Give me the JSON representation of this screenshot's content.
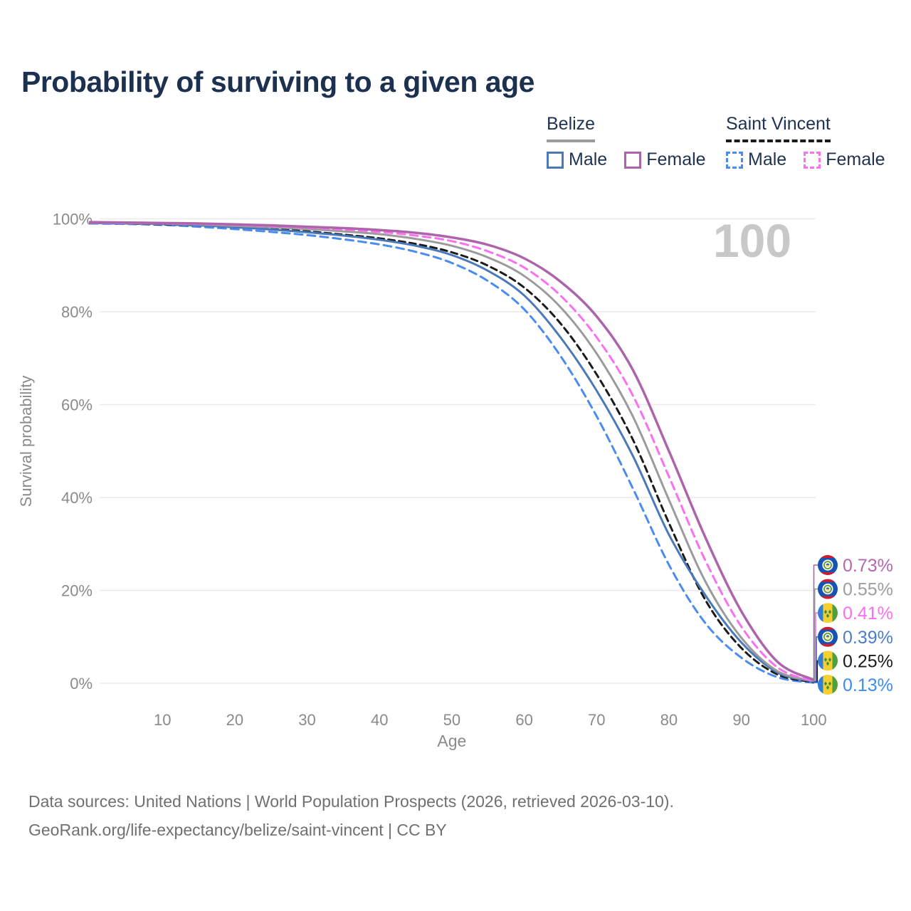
{
  "title": "Probability of surviving to a given age",
  "watermark": "100",
  "legend": {
    "belize": {
      "title": "Belize",
      "male_label": "Male",
      "female_label": "Female"
    },
    "saint_vincent": {
      "title": "Saint Vincent",
      "male_label": "Male",
      "female_label": "Female"
    }
  },
  "footer": {
    "line1": "Data sources: United Nations | World Population Prospects (2026, retrieved 2026-03-10).",
    "line2": "GeoRank.org/life-expectancy/belize/saint-vincent | CC BY"
  },
  "chart_data": {
    "type": "line",
    "title": "Probability of surviving to a given age",
    "xlabel": "Age",
    "ylabel": "Survival probability",
    "xlim": [
      0,
      100
    ],
    "ylim": [
      0,
      100
    ],
    "x_ticks": [
      10,
      20,
      30,
      40,
      50,
      60,
      70,
      80,
      90,
      100
    ],
    "y_ticks": [
      0,
      20,
      40,
      60,
      80,
      100
    ],
    "y_tick_suffix": "%",
    "grid": "horizontal-only",
    "legend_position": "top-right",
    "colors": {
      "grid": "#e9e9e9",
      "axis_text": "#8a8a8a",
      "watermark": "#c8c8c8",
      "title_text": "#1c3150",
      "footer_text": "#707070"
    },
    "ages": [
      0,
      5,
      10,
      15,
      20,
      25,
      30,
      35,
      40,
      45,
      50,
      55,
      60,
      65,
      70,
      75,
      80,
      85,
      90,
      95,
      100
    ],
    "series": [
      {
        "id": "sv-male",
        "name": "Saint Vincent Male",
        "country": "Saint Vincent",
        "sex": "Male",
        "style": "dashed",
        "dash": "11 7",
        "width": 3,
        "color": "#4a8cf0",
        "label_color": "#3e8bf2",
        "flag": "saint_vincent",
        "end_label": "0.13%",
        "label_row": 6,
        "values": [
          99.0,
          98.9,
          98.7,
          98.3,
          97.8,
          97.2,
          96.5,
          95.6,
          94.5,
          92.9,
          90.5,
          86.6,
          80.5,
          70.5,
          57.5,
          42.0,
          25.5,
          13.0,
          5.5,
          1.3,
          0.13
        ]
      },
      {
        "id": "sv-total",
        "name": "Saint Vincent (both sexes)",
        "country": "Saint Vincent",
        "sex": "Both",
        "style": "dashed",
        "dash": "9 6",
        "width": 3,
        "color": "#1b1b1b",
        "label_color": "#1b1b1b",
        "flag": "saint_vincent",
        "end_label": "0.25%",
        "label_row": 5,
        "values": [
          99.1,
          99.0,
          98.8,
          98.6,
          98.2,
          97.8,
          97.3,
          96.6,
          95.8,
          94.6,
          92.8,
          89.9,
          85.2,
          77.5,
          66.5,
          52.5,
          34.5,
          18.0,
          7.6,
          1.9,
          0.25
        ]
      },
      {
        "id": "belize-male",
        "name": "Belize Male",
        "country": "Belize",
        "sex": "Male",
        "style": "solid",
        "dash": "",
        "width": 3,
        "color": "#4a79ba",
        "label_color": "#4c7ec8",
        "flag": "belize",
        "end_label": "0.39%",
        "label_row": 4,
        "values": [
          99.1,
          99.0,
          98.9,
          98.6,
          98.2,
          97.7,
          97.1,
          96.4,
          95.5,
          94.2,
          92.2,
          88.8,
          83.5,
          74.5,
          63.0,
          49.0,
          32.0,
          19.0,
          8.8,
          2.3,
          0.39
        ]
      },
      {
        "id": "belize-total",
        "name": "Belize (both sexes)",
        "country": "Belize",
        "sex": "Both",
        "style": "solid",
        "dash": "",
        "width": 3,
        "color": "#9b9b9b",
        "label_color": "#9e9e9e",
        "flag": "belize",
        "end_label": "0.55%",
        "label_row": 2,
        "values": [
          99.2,
          99.1,
          99.0,
          98.8,
          98.5,
          98.2,
          97.8,
          97.3,
          96.7,
          95.7,
          94.2,
          91.7,
          87.7,
          81.0,
          71.0,
          57.5,
          39.5,
          22.0,
          9.8,
          2.6,
          0.55
        ]
      },
      {
        "id": "sv-female",
        "name": "Saint Vincent Female",
        "country": "Saint Vincent",
        "sex": "Female",
        "style": "dashed",
        "dash": "11 7",
        "width": 3,
        "color": "#fa70f0",
        "label_color": "#fb6ef1",
        "flag": "saint_vincent",
        "end_label": "0.41%",
        "label_row": 3,
        "values": [
          99.2,
          99.1,
          99.0,
          98.9,
          98.7,
          98.4,
          98.1,
          97.7,
          97.2,
          96.4,
          95.2,
          93.0,
          89.5,
          83.5,
          74.5,
          62.0,
          44.5,
          26.5,
          12.2,
          3.4,
          0.41
        ]
      },
      {
        "id": "belize-female",
        "name": "Belize Female",
        "country": "Belize",
        "sex": "Female",
        "style": "solid",
        "dash": "",
        "width": 3.5,
        "color": "#ad64ab",
        "label_color": "#b666ad",
        "flag": "belize",
        "end_label": "0.73%",
        "label_row": 1,
        "values": [
          99.3,
          99.2,
          99.1,
          99.0,
          98.8,
          98.6,
          98.3,
          98.0,
          97.6,
          97.0,
          96.0,
          94.4,
          91.5,
          86.5,
          79.0,
          67.5,
          50.0,
          31.5,
          15.5,
          4.6,
          0.73
        ]
      }
    ],
    "flags": {
      "belize": {
        "field": "#1553b4",
        "stripe": "#cf1b2b",
        "disc": "#ffffff",
        "wreath": "#6ca03c",
        "emblem_top": "#2a6bc0",
        "emblem_bottom": "#f0c93f"
      },
      "saint_vincent": {
        "blue": "#2f7fd8",
        "yellow": "#f5cf2f",
        "green": "#4f9f3c",
        "diamond": "#3c8f3a"
      }
    }
  }
}
